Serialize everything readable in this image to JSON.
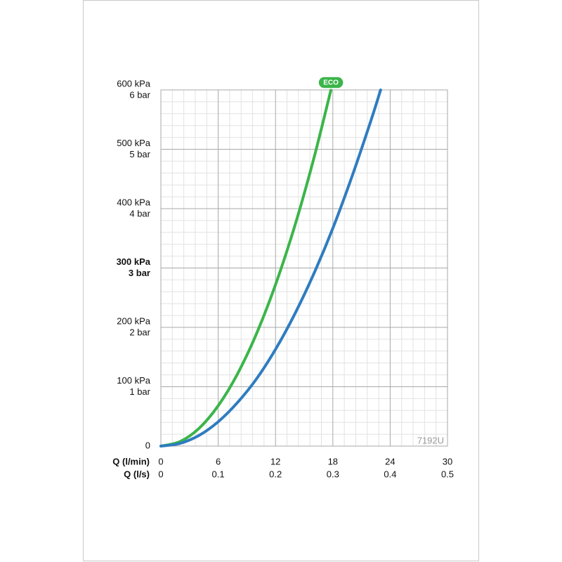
{
  "chart_data": {
    "type": "line",
    "xlabel": "Q (l/min)",
    "x2label": "Q (l/s)",
    "xlim": [
      0,
      30
    ],
    "xticks": [
      0,
      6,
      12,
      18,
      24,
      30
    ],
    "x2lim": [
      0,
      0.5
    ],
    "x2ticks": [
      0,
      0.1,
      0.2,
      0.3,
      0.4,
      0.5
    ],
    "ylim": [
      0,
      600
    ],
    "yticks": [
      0,
      {
        "value": 100,
        "label": "100 kPa"
      },
      {
        "value": 200,
        "label": "200 kPa"
      },
      {
        "value": 300,
        "label": "300 kPa"
      },
      {
        "value": 400,
        "label": "400 kPa"
      },
      {
        "value": 500,
        "label": "500 kPa"
      },
      {
        "value": 600,
        "label": "600 kPa"
      }
    ],
    "y2lim": [
      0,
      6
    ],
    "y2ticks": [
      {
        "value": 1,
        "label": "1 bar"
      },
      {
        "value": 2,
        "label": "2 bar"
      },
      {
        "value": 3,
        "label": "3 bar"
      },
      {
        "value": 4,
        "label": "4 bar"
      },
      {
        "value": 5,
        "label": "5 bar"
      },
      {
        "value": 6,
        "label": "6 bar"
      }
    ],
    "emphasized_tick": 300,
    "grid": true,
    "minor_divisions": 5,
    "annotation": "7192U",
    "series": [
      {
        "name": "ECO",
        "color": "#3bb54a",
        "x": [
          0,
          2,
          4,
          6,
          8,
          10,
          12,
          14,
          16,
          17.8
        ],
        "values": [
          0,
          7.6,
          30,
          68,
          121,
          189,
          272,
          370,
          484,
          600
        ]
      },
      {
        "color": "#2f7cc0",
        "x": [
          0,
          2,
          4,
          6,
          8,
          10,
          12,
          14,
          16,
          18,
          20,
          22,
          23
        ],
        "values": [
          0,
          4.5,
          18,
          41,
          73,
          113,
          163,
          222,
          290,
          367,
          454,
          549,
          600
        ]
      }
    ]
  }
}
